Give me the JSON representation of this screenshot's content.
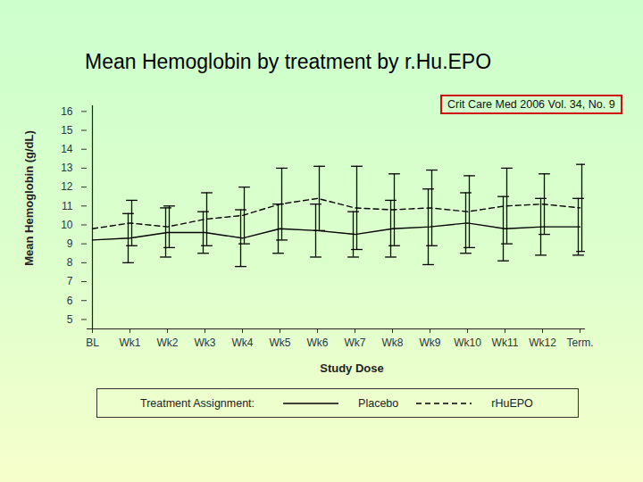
{
  "chart_data": {
    "type": "line",
    "title": "Mean Hemoglobin by treatment by r.Hu.EPO",
    "annotation": "Crit Care Med 2006 Vol. 34, No. 9",
    "x_label": "Study Dose",
    "y_label": "Mean Hemoglobin (g/dL)",
    "legend_title": "Treatment Assignment:",
    "legend": "bottom",
    "categories": [
      "BL",
      "Wk1",
      "Wk2",
      "Wk3",
      "Wk4",
      "Wk5",
      "Wk6",
      "Wk7",
      "Wk8",
      "Wk9",
      "Wk10",
      "Wk11",
      "Wk12",
      "Term."
    ],
    "series": [
      {
        "name": "Placebo",
        "color": "#000000",
        "line_style": "solid",
        "values": [
          9.2,
          9.3,
          9.6,
          9.6,
          9.3,
          9.8,
          9.7,
          9.5,
          9.8,
          9.9,
          10.1,
          9.8,
          9.9,
          9.9
        ],
        "error": [
          null,
          1.3,
          1.3,
          1.1,
          1.5,
          1.3,
          1.4,
          1.2,
          1.5,
          2.0,
          1.6,
          1.7,
          1.5,
          1.5
        ]
      },
      {
        "name": "rHuEPO",
        "color": "#000000",
        "line_style": "dashed",
        "values": [
          9.8,
          10.1,
          9.9,
          10.3,
          10.5,
          11.1,
          11.4,
          10.9,
          10.8,
          10.9,
          10.7,
          11.0,
          11.1,
          10.9
        ],
        "error": [
          null,
          1.2,
          1.1,
          1.4,
          1.5,
          1.9,
          1.7,
          2.2,
          1.9,
          2.0,
          1.9,
          2.0,
          1.6,
          2.3
        ]
      }
    ],
    "ylim": [
      4.5,
      16.3
    ],
    "yticks": [
      5,
      6,
      7,
      8,
      9,
      10,
      11,
      12,
      13,
      14,
      15,
      16
    ],
    "grid": false
  }
}
